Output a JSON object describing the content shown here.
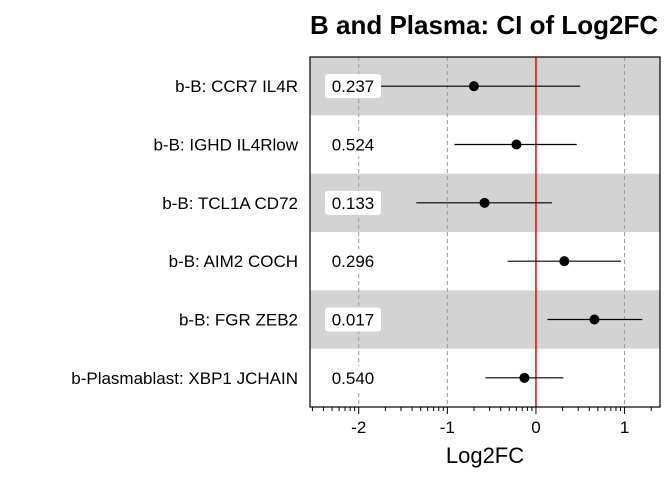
{
  "chart_data": {
    "type": "forest",
    "title": "B and Plasma: CI of Log2FC",
    "xlabel": "Log2FC",
    "xlim": [
      -2.55,
      1.4
    ],
    "xticks": [
      -2,
      -1,
      0,
      1
    ],
    "reference_line": 0,
    "reference_color": "#ff0000",
    "band_color": "#d3d3d3",
    "grid": "dashed vertical at major ticks",
    "rows": [
      {
        "label": "b-B: CCR7 IL4R",
        "value": "0.237",
        "estimate": -0.7,
        "ci": [
          -1.8,
          0.5
        ]
      },
      {
        "label": "b-B: IGHD IL4Rlow",
        "value": "0.524",
        "estimate": -0.22,
        "ci": [
          -0.92,
          0.46
        ]
      },
      {
        "label": "b-B: TCL1A CD72",
        "value": "0.133",
        "estimate": -0.58,
        "ci": [
          -1.35,
          0.18
        ]
      },
      {
        "label": "b-B: AIM2 COCH",
        "value": "0.296",
        "estimate": 0.32,
        "ci": [
          -0.32,
          0.96
        ]
      },
      {
        "label": "b-B: FGR ZEB2",
        "value": "0.017",
        "estimate": 0.66,
        "ci": [
          0.13,
          1.2
        ]
      },
      {
        "label": "b-Plasmablast: XBP1 JCHAIN",
        "value": "0.540",
        "estimate": -0.13,
        "ci": [
          -0.57,
          0.31
        ]
      }
    ]
  }
}
